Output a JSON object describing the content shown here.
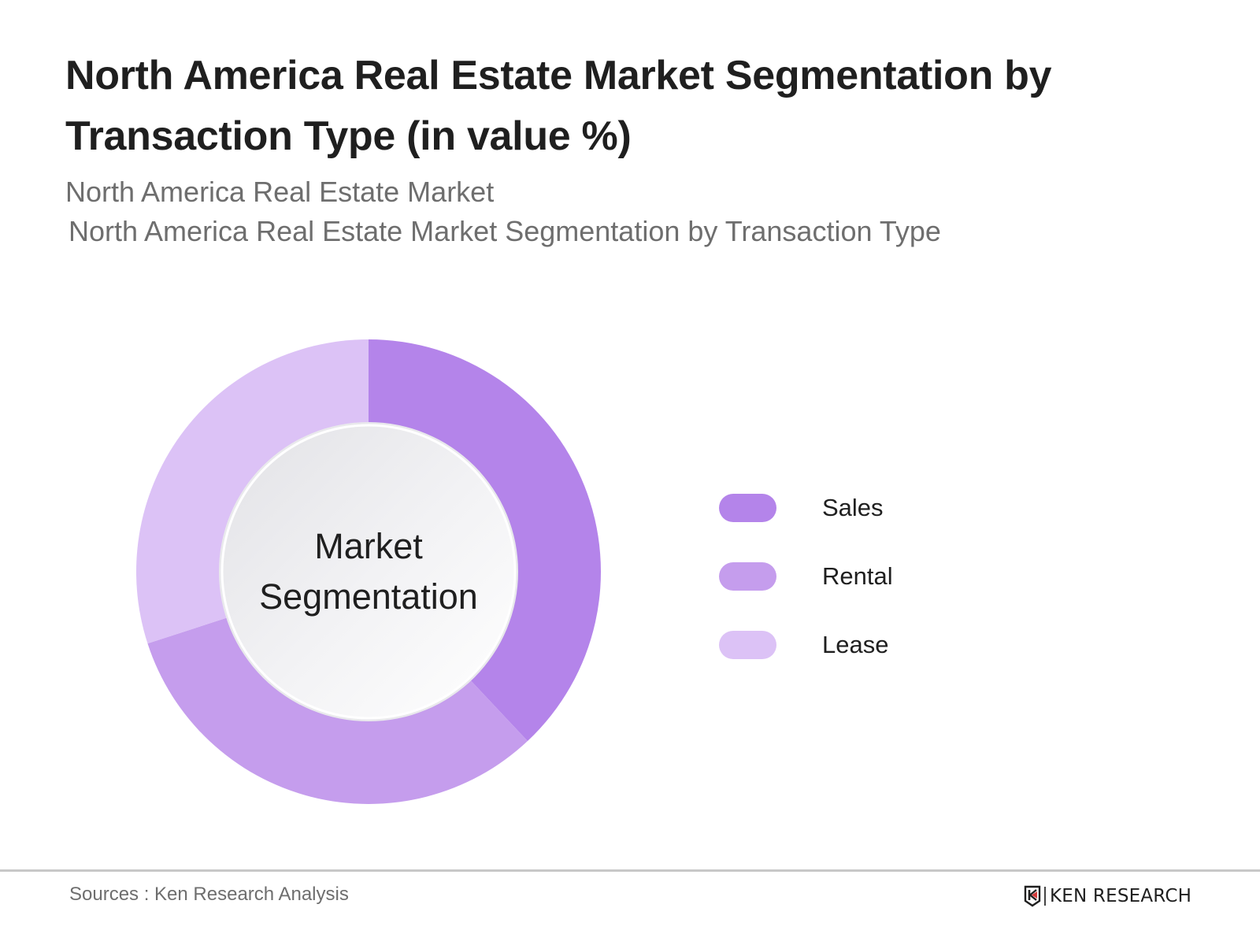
{
  "header": {
    "title": "North America Real Estate Market Segmentation by Transaction Type (in value %)",
    "subtitle_1": "North America Real Estate Market",
    "subtitle_2": "North America Real Estate Market Segmentation by Transaction Type"
  },
  "chart": {
    "center_label_line1": "Market",
    "center_label_line2": "Segmentation"
  },
  "legend": {
    "items": [
      {
        "label": "Sales",
        "color": "#b484ea"
      },
      {
        "label": "Rental",
        "color": "#c59ded"
      },
      {
        "label": "Lease",
        "color": "#dcc2f6"
      }
    ]
  },
  "footer": {
    "source": "Sources : Ken Research Analysis",
    "logo_text": "KEN RESEARCH",
    "logo_accent": "#d23a3a"
  },
  "chart_data": {
    "type": "pie",
    "subtype": "donut",
    "title": "North America Real Estate Market Segmentation by Transaction Type (in value %)",
    "subtitle": "North America Real Estate Market Segmentation by Transaction Type",
    "center_label": "Market Segmentation",
    "categories": [
      "Sales",
      "Rental",
      "Lease"
    ],
    "values": [
      38,
      32,
      30
    ],
    "unit": "%",
    "colors": [
      "#b484ea",
      "#c59ded",
      "#dcc2f6"
    ],
    "start_angle": "12 o'clock",
    "direction": "clockwise",
    "legend_position": "right",
    "data_labels_shown": false,
    "source": "Sources : Ken Research Analysis"
  }
}
